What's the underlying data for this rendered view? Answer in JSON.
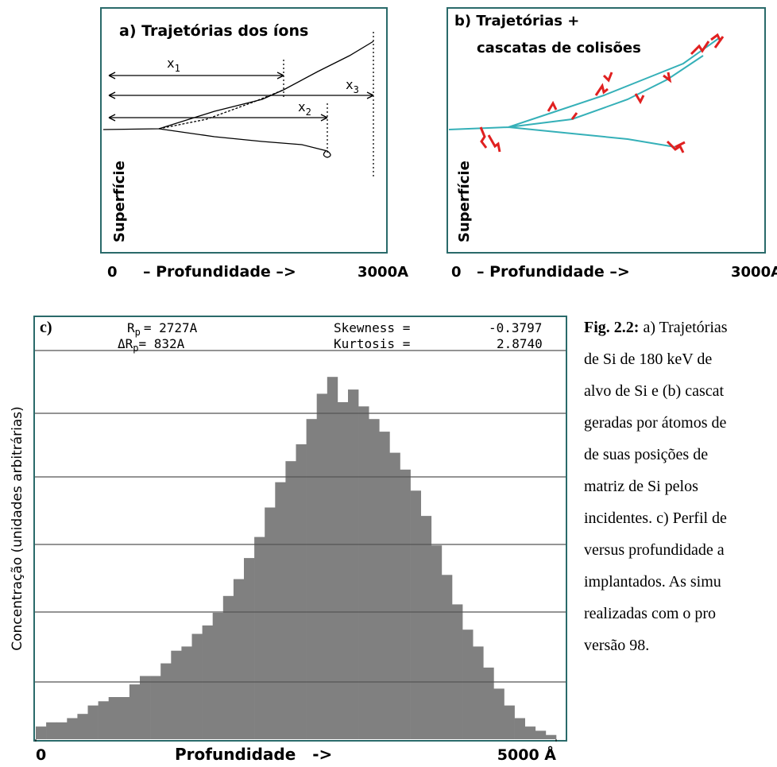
{
  "panel_a": {
    "title": "a) Trajetórias dos íons",
    "x1": "x",
    "x1_sub": "1",
    "x2": "x",
    "x2_sub": "2",
    "x3": "x",
    "x3_sub": "3",
    "surface": "Superfície",
    "axis_start": "0",
    "axis_label": "– Profundidade –>",
    "axis_end": "3000A"
  },
  "panel_b": {
    "title_line1": "b) Trajetórias +",
    "title_line2": "cascatas de colisões",
    "surface": "Superfície",
    "axis_start": "0",
    "axis_label": "– Profundidade –>",
    "axis_end": "3000A"
  },
  "chart_data": {
    "type": "histogram",
    "panel_label": "c)",
    "ylabel": "Concentração (unidades arbitrárias)",
    "xlabel": "Profundidade   ->",
    "color": "#808080",
    "stats": [
      "R",
      "p",
      "= 2727A",
      "ΔR",
      "p",
      "=  832A",
      "Skewness =",
      "-0.3797",
      "Kurtosis =",
      "2.8740"
    ],
    "bins": [
      0,
      100,
      200,
      300,
      400,
      500,
      600,
      700,
      800,
      900,
      1000,
      1100,
      1200,
      1300,
      1400,
      1500,
      1600,
      1700,
      1800,
      1900,
      2000,
      2100,
      2200,
      2300,
      2400,
      2500,
      2600,
      2700,
      2800,
      2900,
      3000,
      3100,
      3200,
      3300,
      3400,
      3500,
      3600,
      3700,
      3800,
      3900,
      4000,
      4100,
      4200,
      4300,
      4400,
      4500,
      4600,
      4700,
      4800,
      4900,
      5000
    ],
    "values": [
      3,
      4,
      4,
      5,
      6,
      8,
      9,
      10,
      10,
      13,
      15,
      15,
      18,
      21,
      22,
      25,
      27,
      30,
      34,
      38,
      43,
      48,
      55,
      61,
      66,
      70,
      76,
      82,
      86,
      80,
      83,
      79,
      76,
      73,
      68,
      64,
      59,
      53,
      46,
      39,
      32,
      26,
      22,
      17,
      12,
      8,
      5,
      3,
      2,
      1
    ],
    "xlim": [
      0,
      5000
    ],
    "ylim": [
      0,
      100
    ],
    "xticks": [
      0,
      {
        "value": 5000,
        "label": "5000 Å"
      }
    ]
  },
  "caption": {
    "label": "Fig. 2.2:",
    "lines": [
      " a) Trajetórias",
      "de Si de 180 keV de",
      "alvo de Si e (b) cascat",
      "geradas por átomos de",
      "de suas posições de",
      "matriz de Si pelos",
      "incidentes. c) Perfil de",
      "versus profundidade a",
      "implantados. As simu",
      "realizadas com o pro",
      "versão 98."
    ]
  }
}
